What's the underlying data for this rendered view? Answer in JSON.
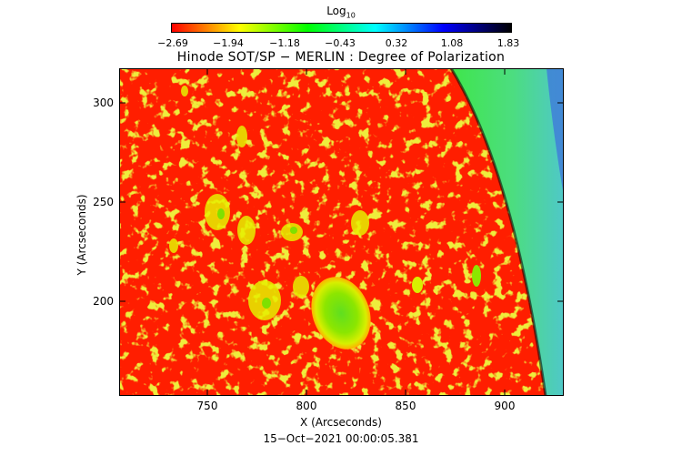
{
  "colorbar": {
    "label_main": "Log",
    "label_sub": "10",
    "ticks": [
      "−2.69",
      "−1.94",
      "−1.18",
      "−0.43",
      "0.32",
      "1.08",
      "1.83"
    ],
    "colors": [
      "#ff0000",
      "#ffff00",
      "#00ff00",
      "#00ffff",
      "#0000ff",
      "#000000"
    ]
  },
  "title": "Hinode SOT/SP − MERLIN : Degree of Polarization",
  "axes": {
    "xlabel": "X (Arcseconds)",
    "ylabel": "Y (Arcseconds)",
    "xticks": [
      "750",
      "800",
      "850",
      "900"
    ],
    "yticks": [
      "300",
      "250",
      "200"
    ]
  },
  "timestamp": "15−Oct−2021 00:00:05.381",
  "image_colors": {
    "background": "#ff1e00",
    "pore_outer": "#d8f000",
    "pore_inner": "#7fe400",
    "limb_green": "#3fe64a",
    "limb_cyan": "#4fd2c6",
    "offlimb_blue": "#3f7fd8"
  }
}
